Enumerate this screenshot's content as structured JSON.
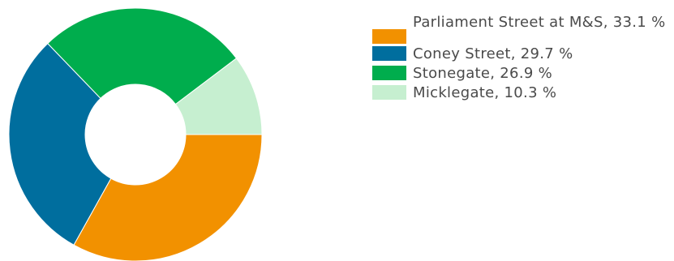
{
  "chart_data": {
    "type": "pie",
    "donut": true,
    "title": "",
    "legend_position": "right",
    "slices": [
      {
        "label": "Parliament Street at M&S",
        "value": 33.1,
        "legend_text": "Parliament Street at M&S, 33.1 %",
        "color": "#f29100"
      },
      {
        "label": "Coney Street",
        "value": 29.7,
        "legend_text": "Coney Street, 29.7 %",
        "color": "#006e9e"
      },
      {
        "label": "Stonegate",
        "value": 26.9,
        "legend_text": "Stonegate, 26.9 %",
        "color": "#00ad4d"
      },
      {
        "label": "Micklegate",
        "value": 10.3,
        "legend_text": "Micklegate, 10.3 %",
        "color": "#c6efd0"
      }
    ]
  }
}
